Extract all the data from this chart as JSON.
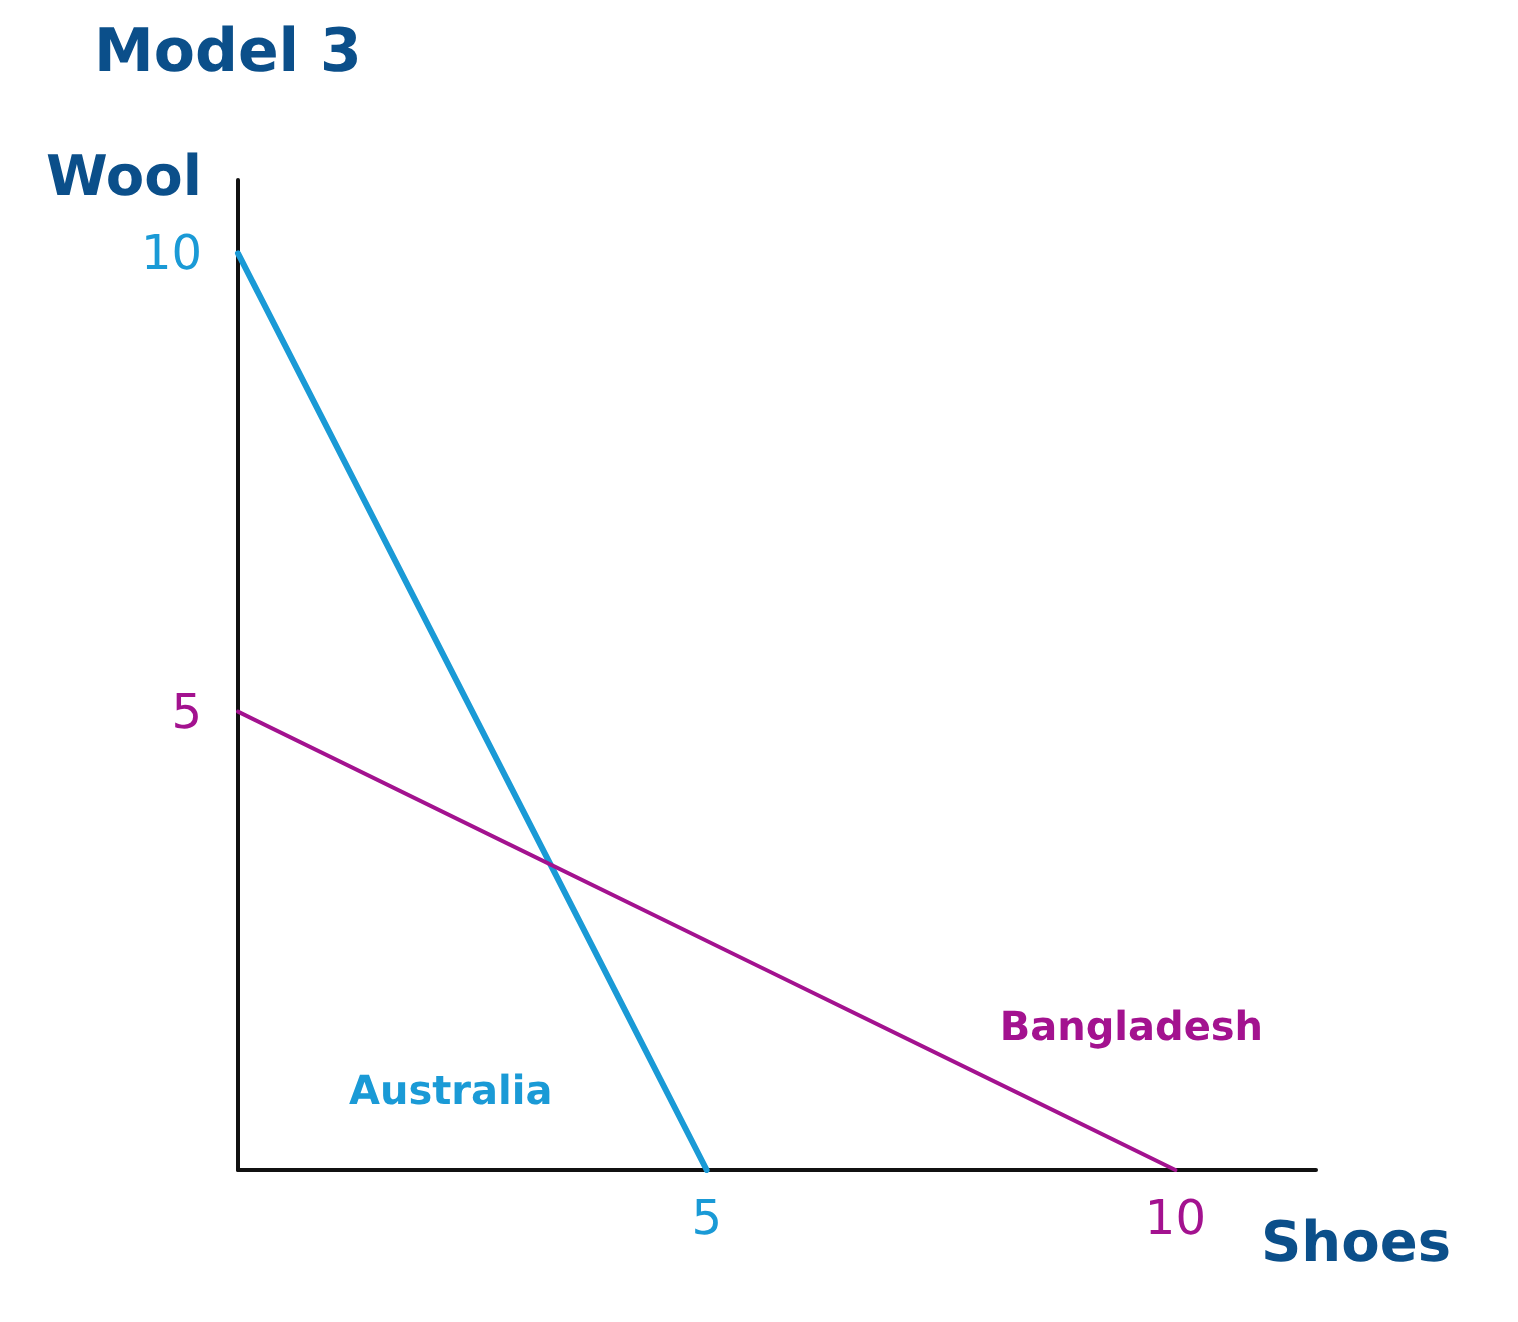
{
  "chart_data": {
    "type": "line",
    "title": "Model 3",
    "xlabel": "Shoes",
    "ylabel": "Wool",
    "series": [
      {
        "name": "Australia",
        "color": "#1a9ad6",
        "x": [
          0,
          5
        ],
        "values": [
          10,
          0
        ]
      },
      {
        "name": "Bangladesh",
        "color": "#a3128f",
        "x": [
          0,
          10
        ],
        "values": [
          5,
          0
        ]
      }
    ],
    "xlim": [
      0,
      11.5
    ],
    "ylim": [
      0,
      10.8
    ],
    "xticks": [
      5,
      10
    ],
    "yticks": [
      5,
      10
    ],
    "marker": "none",
    "line_style": "solid"
  }
}
